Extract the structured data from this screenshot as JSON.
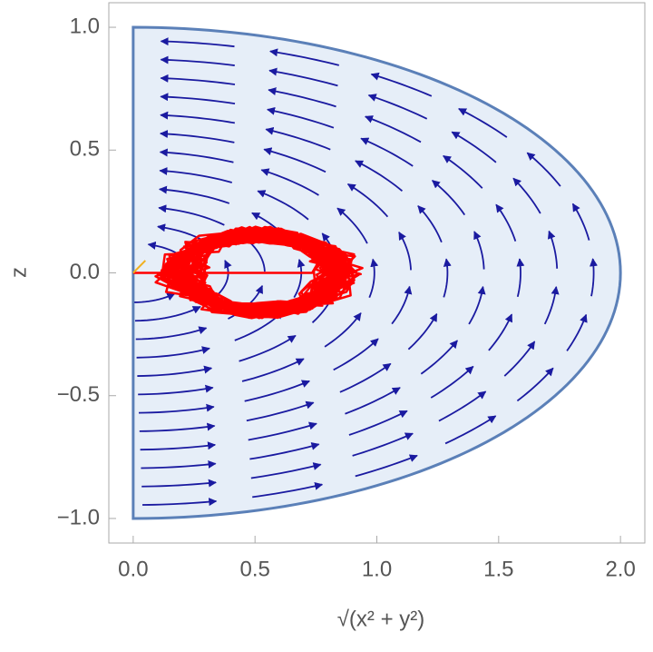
{
  "chart_data": {
    "type": "streamplot",
    "xlabel": "√(x² + y²)",
    "ylabel": "z",
    "xlim": [
      -0.1,
      2.1
    ],
    "ylim": [
      -1.1,
      1.1
    ],
    "xticks": [
      {
        "value": 0,
        "label": "0.0"
      },
      {
        "value": 0.5,
        "label": "0.5"
      },
      {
        "value": 1,
        "label": "1.0"
      },
      {
        "value": 1.5,
        "label": "1.5"
      },
      {
        "value": 2,
        "label": "2.0"
      }
    ],
    "yticks": [
      {
        "value": -1,
        "label": "−1.0"
      },
      {
        "value": -0.5,
        "label": "−0.5"
      },
      {
        "value": 0,
        "label": "0.0"
      },
      {
        "value": 0.5,
        "label": "0.5"
      },
      {
        "value": 1,
        "label": "1.0"
      }
    ],
    "stream_color": "#1a1aa0",
    "region_color": "#e6eef8",
    "boundary_color": "#5b80b8",
    "trajectory_color": "#ff0000"
  }
}
